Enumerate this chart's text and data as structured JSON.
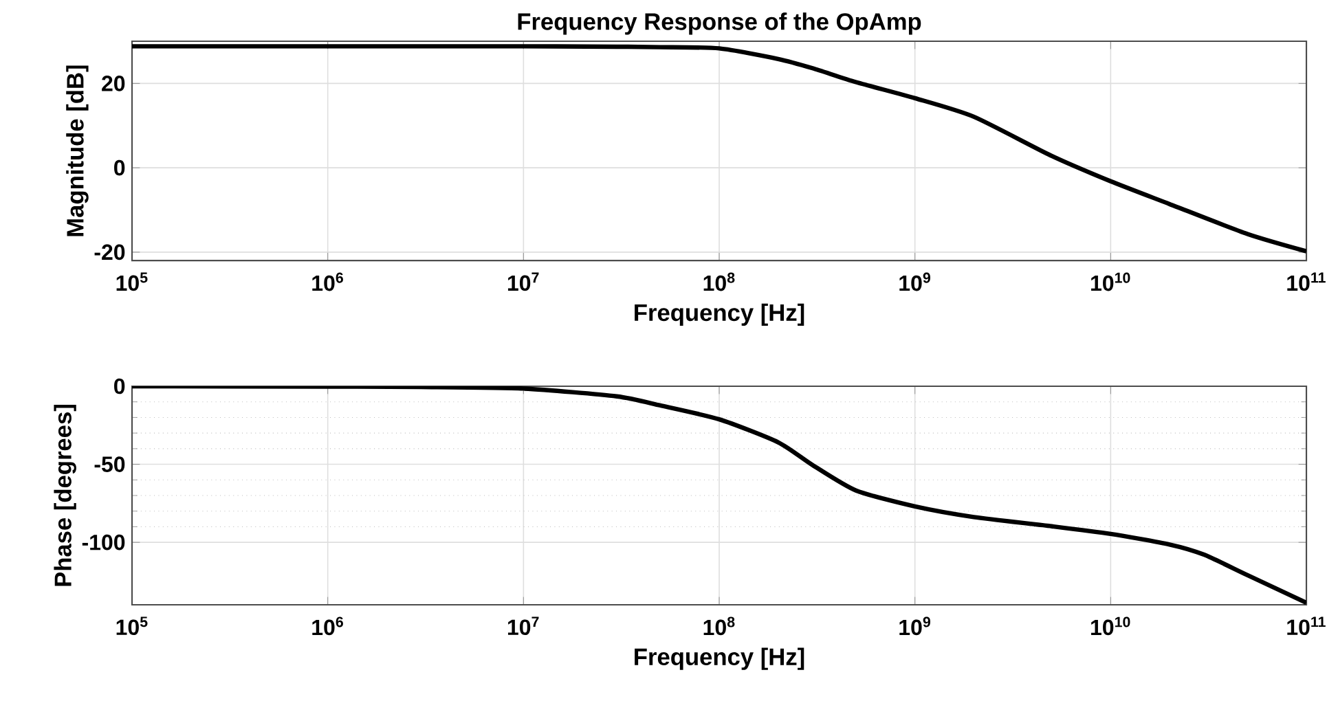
{
  "chart_data": [
    {
      "type": "line",
      "title": "Frequency Response of the OpAmp",
      "xlabel": "Frequency [Hz]",
      "ylabel": "Magnitude [dB]",
      "log": "x",
      "grid": true,
      "xlim": [
        100000,
        100000000000
      ],
      "ylim": [
        -22,
        30
      ],
      "xticks": [
        {
          "value": 100000,
          "label": "10$^{5}$"
        },
        {
          "value": 1000000,
          "label": "10$^{6}$"
        },
        {
          "value": 10000000,
          "label": "10$^{7}$"
        },
        {
          "value": 100000000,
          "label": "10$^{8}$"
        },
        {
          "value": 1000000000,
          "label": "10$^{9}$"
        },
        {
          "value": 10000000000,
          "label": "10$^{10}$"
        },
        {
          "value": 100000000000,
          "label": "10$^{11}$"
        }
      ],
      "yticks": [
        -20,
        0,
        20
      ],
      "x": [
        100000,
        1000000,
        10000000,
        30000000,
        50000000,
        100000000,
        200000000,
        300000000,
        500000000,
        1000000000,
        2000000000,
        5000000000,
        10000000000,
        20000000000,
        50000000000,
        100000000000
      ],
      "series": [
        {
          "color": "#000000",
          "values": [
            28.8,
            28.8,
            28.8,
            28.7,
            28.6,
            28.3,
            25.8,
            23.6,
            20.3,
            16.5,
            12.1,
            2.8,
            -3.2,
            -8.6,
            -15.7,
            -19.8
          ]
        }
      ]
    },
    {
      "type": "line",
      "xlabel": "Frequency [Hz]",
      "ylabel": "Phase [degrees]",
      "log": "x",
      "grid": true,
      "xlim": [
        100000,
        100000000000
      ],
      "ylim": [
        -140,
        0
      ],
      "xticks": [
        {
          "value": 100000,
          "label": "10$^{5}$"
        },
        {
          "value": 1000000,
          "label": "10$^{6}$"
        },
        {
          "value": 10000000,
          "label": "10$^{7}$"
        },
        {
          "value": 100000000,
          "label": "10$^{8}$"
        },
        {
          "value": 1000000000,
          "label": "10$^{9}$"
        },
        {
          "value": 10000000000,
          "label": "10$^{10}$"
        },
        {
          "value": 100000000000,
          "label": "10$^{11}$"
        }
      ],
      "yticks": [
        -100,
        -50,
        0
      ],
      "x": [
        100000,
        1000000,
        3000000,
        10000000,
        30000000,
        50000000,
        100000000,
        200000000,
        300000000,
        500000000,
        1000000000,
        2000000000,
        5000000000,
        10000000000,
        20000000000,
        30000000000,
        50000000000,
        100000000000
      ],
      "series": [
        {
          "color": "#000000",
          "values": [
            0,
            -0.2,
            -0.5,
            -1.5,
            -6.5,
            -12.3,
            -21.2,
            -35.9,
            -50.5,
            -66.8,
            -77,
            -83.8,
            -89.7,
            -94.6,
            -101.4,
            -107.9,
            -121,
            -138.7
          ]
        }
      ]
    }
  ]
}
